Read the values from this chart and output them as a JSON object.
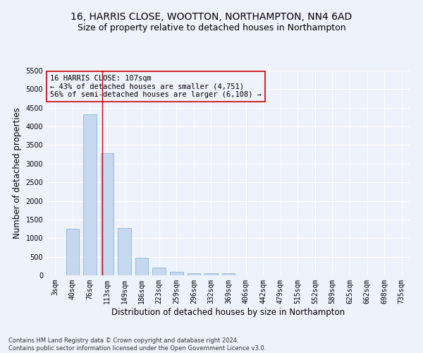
{
  "title1": "16, HARRIS CLOSE, WOOTTON, NORTHAMPTON, NN4 6AD",
  "title2": "Size of property relative to detached houses in Northampton",
  "xlabel": "Distribution of detached houses by size in Northampton",
  "ylabel": "Number of detached properties",
  "footnote": "Contains HM Land Registry data © Crown copyright and database right 2024.\nContains public sector information licensed under the Open Government Licence v3.0.",
  "bar_labels": [
    "3sqm",
    "40sqm",
    "76sqm",
    "113sqm",
    "149sqm",
    "186sqm",
    "223sqm",
    "259sqm",
    "296sqm",
    "332sqm",
    "369sqm",
    "406sqm",
    "442sqm",
    "479sqm",
    "515sqm",
    "552sqm",
    "589sqm",
    "625sqm",
    "662sqm",
    "698sqm",
    "735sqm"
  ],
  "bar_values": [
    0,
    1260,
    4330,
    3290,
    1280,
    480,
    210,
    90,
    60,
    50,
    60,
    0,
    0,
    0,
    0,
    0,
    0,
    0,
    0,
    0,
    0
  ],
  "bar_color": "#c5d8f0",
  "bar_edge_color": "#7aadd4",
  "vline_x": 2.72,
  "vline_color": "#cc0000",
  "annotation_text": "16 HARRIS CLOSE: 107sqm\n← 43% of detached houses are smaller (4,751)\n56% of semi-detached houses are larger (6,108) →",
  "annotation_box_color": "#cc0000",
  "ylim": [
    0,
    5500
  ],
  "yticks": [
    0,
    500,
    1000,
    1500,
    2000,
    2500,
    3000,
    3500,
    4000,
    4500,
    5000,
    5500
  ],
  "bg_color": "#eef2fa",
  "grid_color": "#ffffff",
  "title1_fontsize": 10,
  "title2_fontsize": 9,
  "axis_label_fontsize": 8.5,
  "tick_fontsize": 7,
  "annotation_fontsize": 7.5,
  "footnote_fontsize": 6
}
